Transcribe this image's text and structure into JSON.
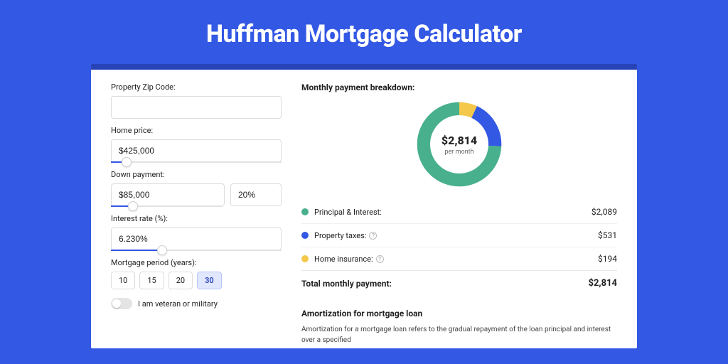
{
  "colors": {
    "page_bg": "#3358e4",
    "card_border_top": "#2843b8",
    "slider_fill": "#3358e4",
    "principal": "#48b08c",
    "taxes": "#3358e4",
    "insurance": "#f3c84b"
  },
  "title": "Huffman Mortgage Calculator",
  "form": {
    "zip_label": "Property Zip Code:",
    "zip_value": "",
    "home_price_label": "Home price:",
    "home_price_value": "$425,000",
    "home_price_slider_pct": 9,
    "down_payment_label": "Down payment:",
    "down_payment_value": "$85,000",
    "down_payment_pct_value": "20%",
    "down_payment_slider_pct": 20,
    "interest_label": "Interest rate (%):",
    "interest_value": "6.230%",
    "interest_slider_pct": 30,
    "period_label": "Mortgage period (years):",
    "periods": [
      "10",
      "15",
      "20",
      "30"
    ],
    "period_selected": "30",
    "veteran_label": "I am veteran or military"
  },
  "breakdown": {
    "title": "Monthly payment breakdown:",
    "center_amount": "$2,814",
    "center_per": "per month",
    "donut": {
      "principal_pct": 74.3,
      "taxes_pct": 18.8,
      "insurance_pct": 6.9
    },
    "rows": [
      {
        "label": "Principal & Interest:",
        "value": "$2,089",
        "color_key": "principal",
        "help": false
      },
      {
        "label": "Property taxes:",
        "value": "$531",
        "color_key": "taxes",
        "help": true
      },
      {
        "label": "Home insurance:",
        "value": "$194",
        "color_key": "insurance",
        "help": true
      }
    ],
    "total_label": "Total monthly payment:",
    "total_value": "$2,814"
  },
  "amort": {
    "title": "Amortization for mortgage loan",
    "body": "Amortization for a mortgage loan refers to the gradual repayment of the loan principal and interest over a specified"
  }
}
